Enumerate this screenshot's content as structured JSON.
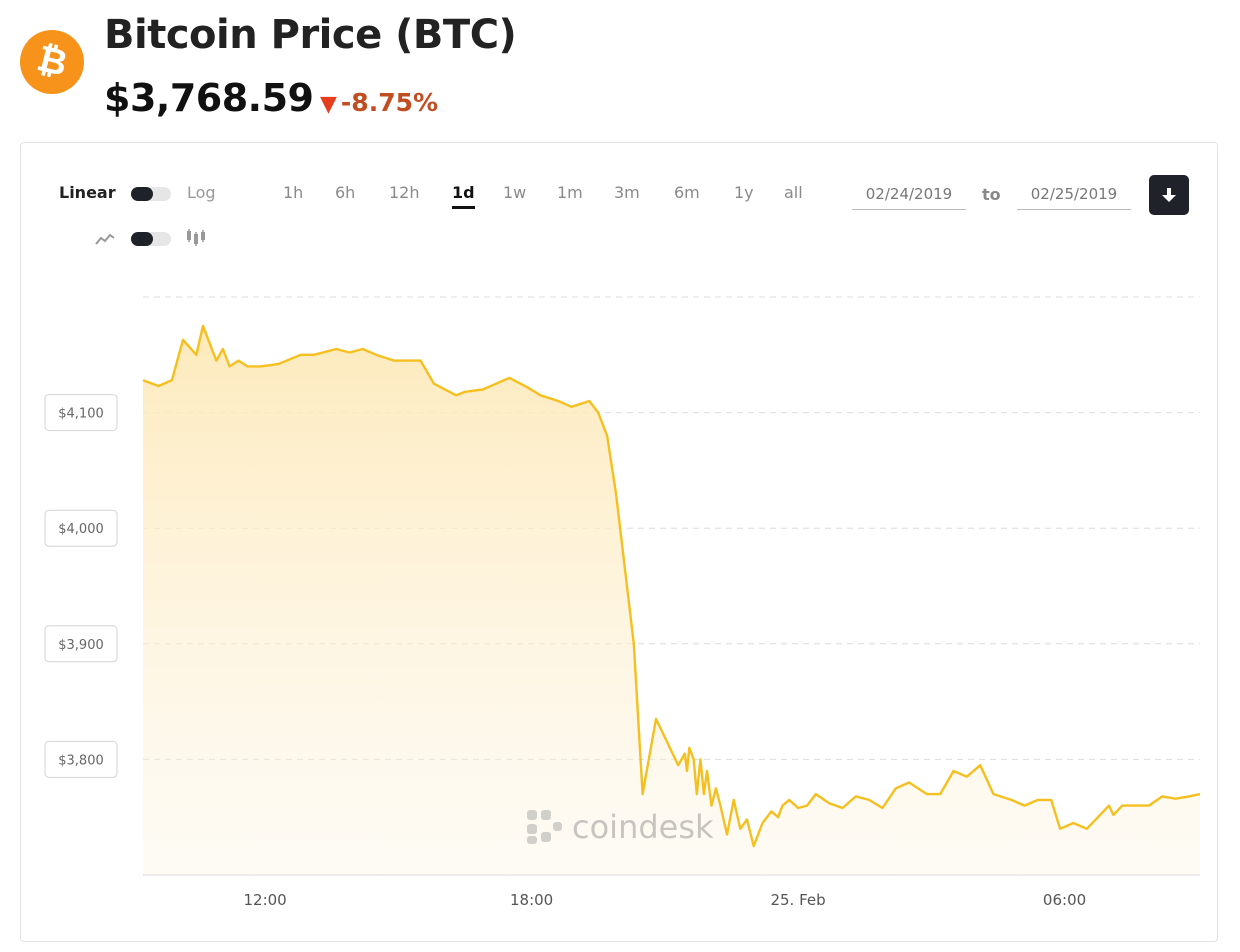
{
  "header": {
    "logo_icon": "bitcoin-logo-icon",
    "logo_glyph": "₿",
    "title": "Bitcoin Price (BTC)",
    "price": "$3,768.59",
    "change": "-8.75%",
    "change_arrow": "▼",
    "change_color": "#c14d21"
  },
  "controls": {
    "scale_left": "Linear",
    "scale_right": "Log",
    "chart_type_left_icon": "line-chart-icon",
    "chart_type_right_icon": "candlestick-icon",
    "ranges": [
      "1h",
      "6h",
      "12h",
      "1d",
      "1w",
      "1m",
      "3m",
      "6m",
      "1y",
      "all"
    ],
    "active_range": "1d",
    "date_from": "02/24/2019",
    "date_to_label": "to",
    "date_to": "02/25/2019",
    "download_icon": "download-icon"
  },
  "chart_data": {
    "type": "area",
    "watermark": "coindesk",
    "line_color": "#f5c01f",
    "x_ticks": [
      "12:00",
      "18:00",
      "25. Feb",
      "06:00"
    ],
    "x_tick_hours": [
      12,
      18,
      24,
      30
    ],
    "y_ticks": [
      "$4,100",
      "$4,000",
      "$3,900",
      "$3,800"
    ],
    "y_tick_values": [
      4100,
      4000,
      3900,
      3800
    ],
    "ylim": [
      3700,
      4200
    ],
    "xlim_hours": [
      9.25,
      33.05
    ],
    "grid": true,
    "series": [
      {
        "x": [
          9.25,
          9.6,
          9.9,
          10.15,
          10.45,
          10.6,
          10.9,
          11.05,
          11.2,
          11.4,
          11.6,
          11.9,
          12.3,
          12.8,
          13.1,
          13.6,
          13.9,
          14.2,
          14.5,
          14.9,
          15.2,
          15.5,
          15.8,
          16.3,
          16.5,
          16.9,
          17.2,
          17.5,
          17.9,
          18.2,
          18.6,
          18.9,
          19.3,
          19.5,
          19.7,
          19.9,
          20.3,
          20.5,
          20.8,
          21.3,
          21.45,
          21.5,
          21.55,
          21.65,
          21.72,
          21.8,
          21.88,
          21.95,
          22.05,
          22.15,
          22.25,
          22.4,
          22.55,
          22.7,
          22.85,
          23.0,
          23.2,
          23.4,
          23.55,
          23.65,
          23.8,
          24.0,
          24.2,
          24.4,
          24.7,
          25.0,
          25.3,
          25.6,
          25.9,
          26.2,
          26.5,
          26.9,
          27.2,
          27.5,
          27.8,
          28.1,
          28.4,
          28.8,
          29.1,
          29.4,
          29.7,
          29.9,
          30.2,
          30.5,
          30.8,
          31.0,
          31.1,
          31.3,
          31.6,
          31.9,
          32.2,
          32.5,
          32.8,
          33.05
        ],
        "y": [
          4128,
          4123,
          4128,
          4163,
          4150,
          4175,
          4145,
          4155,
          4140,
          4145,
          4140,
          4140,
          4142,
          4150,
          4150,
          4155,
          4152,
          4155,
          4150,
          4145,
          4145,
          4145,
          4125,
          4115,
          4118,
          4120,
          4125,
          4130,
          4122,
          4115,
          4110,
          4105,
          4110,
          4100,
          4080,
          4030,
          3900,
          3770,
          3835,
          3795,
          3805,
          3790,
          3810,
          3800,
          3770,
          3800,
          3770,
          3790,
          3760,
          3775,
          3760,
          3735,
          3765,
          3740,
          3748,
          3725,
          3745,
          3755,
          3750,
          3760,
          3765,
          3758,
          3760,
          3770,
          3762,
          3758,
          3768,
          3765,
          3758,
          3775,
          3780,
          3770,
          3770,
          3790,
          3785,
          3795,
          3770,
          3765,
          3760,
          3765,
          3765,
          3740,
          3745,
          3740,
          3752,
          3760,
          3752,
          3760,
          3760,
          3760,
          3768,
          3766,
          3768,
          3770
        ]
      }
    ]
  }
}
